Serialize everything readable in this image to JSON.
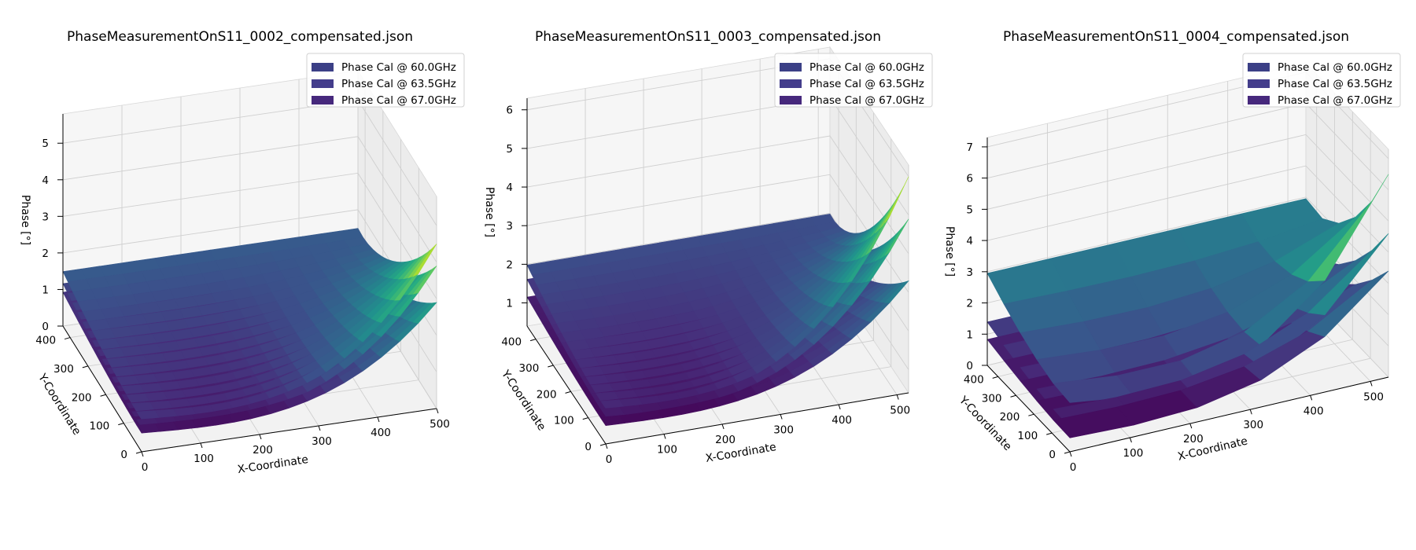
{
  "figure": {
    "background": "#ffffff"
  },
  "chart_data": [
    {
      "type": "surface3d",
      "title": "PhaseMeasurementOnS11_0002_compensated.json",
      "xlabel": "X-Coordinate",
      "ylabel": "Y-Coordinate",
      "zlabel": "Phase [°]",
      "xlim": [
        0,
        500
      ],
      "ylim": [
        0,
        440
      ],
      "zlim": [
        0,
        5.8
      ],
      "x_ticks": [
        "0",
        "100",
        "200",
        "300",
        "400",
        "500"
      ],
      "y_ticks": [
        "0",
        "100",
        "200",
        "300",
        "400"
      ],
      "z_ticks": [
        "0",
        "1",
        "2",
        "3",
        "4",
        "5"
      ],
      "x_tick_values": [
        0,
        100,
        200,
        300,
        400,
        500
      ],
      "y_tick_values": [
        0,
        100,
        200,
        300,
        400
      ],
      "z_tick_values": [
        0,
        1,
        2,
        3,
        4,
        5
      ],
      "grid": true,
      "colormap": "viridis",
      "legend_position": "top-right",
      "series": [
        {
          "name": "Phase Cal @ 60.0GHz",
          "legend_color": "#3b3f86",
          "z_min": 0.25,
          "z_max": 2.9,
          "z_far": 1.0
        },
        {
          "name": "Phase Cal @ 63.5GHz",
          "legend_color": "#433d8b",
          "z_min": 0.35,
          "z_max": 3.9,
          "z_far": 1.25
        },
        {
          "name": "Phase Cal @ 67.0GHz",
          "legend_color": "#46287c",
          "z_min": 0.5,
          "z_max": 4.5,
          "z_far": 1.6
        }
      ],
      "grid_resolution": "fine"
    },
    {
      "type": "surface3d",
      "title": "PhaseMeasurementOnS11_0003_compensated.json",
      "xlabel": "X-Coordinate",
      "ylabel": "Y-Coordinate",
      "zlabel": "Phase [°]",
      "xlim": [
        0,
        520
      ],
      "ylim": [
        0,
        450
      ],
      "zlim": [
        0.4,
        6.3
      ],
      "x_ticks": [
        "0",
        "100",
        "200",
        "300",
        "400",
        "500"
      ],
      "y_ticks": [
        "0",
        "100",
        "200",
        "300",
        "400"
      ],
      "z_ticks": [
        "1",
        "2",
        "3",
        "4",
        "5",
        "6"
      ],
      "x_tick_values": [
        0,
        100,
        200,
        300,
        400,
        500
      ],
      "y_tick_values": [
        0,
        100,
        200,
        300,
        400
      ],
      "z_tick_values": [
        1,
        2,
        3,
        4,
        5,
        6
      ],
      "grid": true,
      "colormap": "viridis",
      "legend_position": "top-right",
      "series": [
        {
          "name": "Phase Cal @ 60.0GHz",
          "legend_color": "#3b3f86",
          "z_min": 0.7,
          "z_max": 3.3,
          "z_far": 1.2
        },
        {
          "name": "Phase Cal @ 63.5GHz",
          "legend_color": "#433d8b",
          "z_min": 0.8,
          "z_max": 4.9,
          "z_far": 1.7
        },
        {
          "name": "Phase Cal @ 67.0GHz",
          "legend_color": "#46287c",
          "z_min": 0.9,
          "z_max": 6.0,
          "z_far": 2.1
        }
      ],
      "grid_resolution": "fine"
    },
    {
      "type": "surface3d",
      "title": "PhaseMeasurementOnS11_0004_compensated.json",
      "xlabel": "X-Coordinate",
      "ylabel": "Y-Coordinate",
      "zlabel": "Phase [°]",
      "xlim": [
        0,
        530
      ],
      "ylim": [
        0,
        460
      ],
      "zlim": [
        0,
        7.3
      ],
      "x_ticks": [
        "0",
        "100",
        "200",
        "300",
        "400",
        "500"
      ],
      "y_ticks": [
        "0",
        "100",
        "200",
        "300",
        "400"
      ],
      "z_ticks": [
        "0",
        "1",
        "2",
        "3",
        "4",
        "5",
        "6",
        "7"
      ],
      "x_tick_values": [
        0,
        100,
        200,
        300,
        400,
        500
      ],
      "y_tick_values": [
        0,
        100,
        200,
        300,
        400
      ],
      "z_tick_values": [
        0,
        1,
        2,
        3,
        4,
        5,
        6,
        7
      ],
      "grid": true,
      "colormap": "viridis",
      "legend_position": "top-right",
      "series": [
        {
          "name": "Phase Cal @ 60.0GHz",
          "legend_color": "#3b3f86",
          "z_min": 0.2,
          "z_max": 3.4,
          "z_far": 0.9
        },
        {
          "name": "Phase Cal @ 63.5GHz",
          "legend_color": "#433d8b",
          "z_min": 0.4,
          "z_max": 4.6,
          "z_far": 1.5
        },
        {
          "name": "Phase Cal @ 67.0GHz",
          "legend_color": "#46287c",
          "z_min": 0.7,
          "z_max": 6.5,
          "z_far": 3.2
        }
      ],
      "grid_resolution": "coarse"
    }
  ]
}
